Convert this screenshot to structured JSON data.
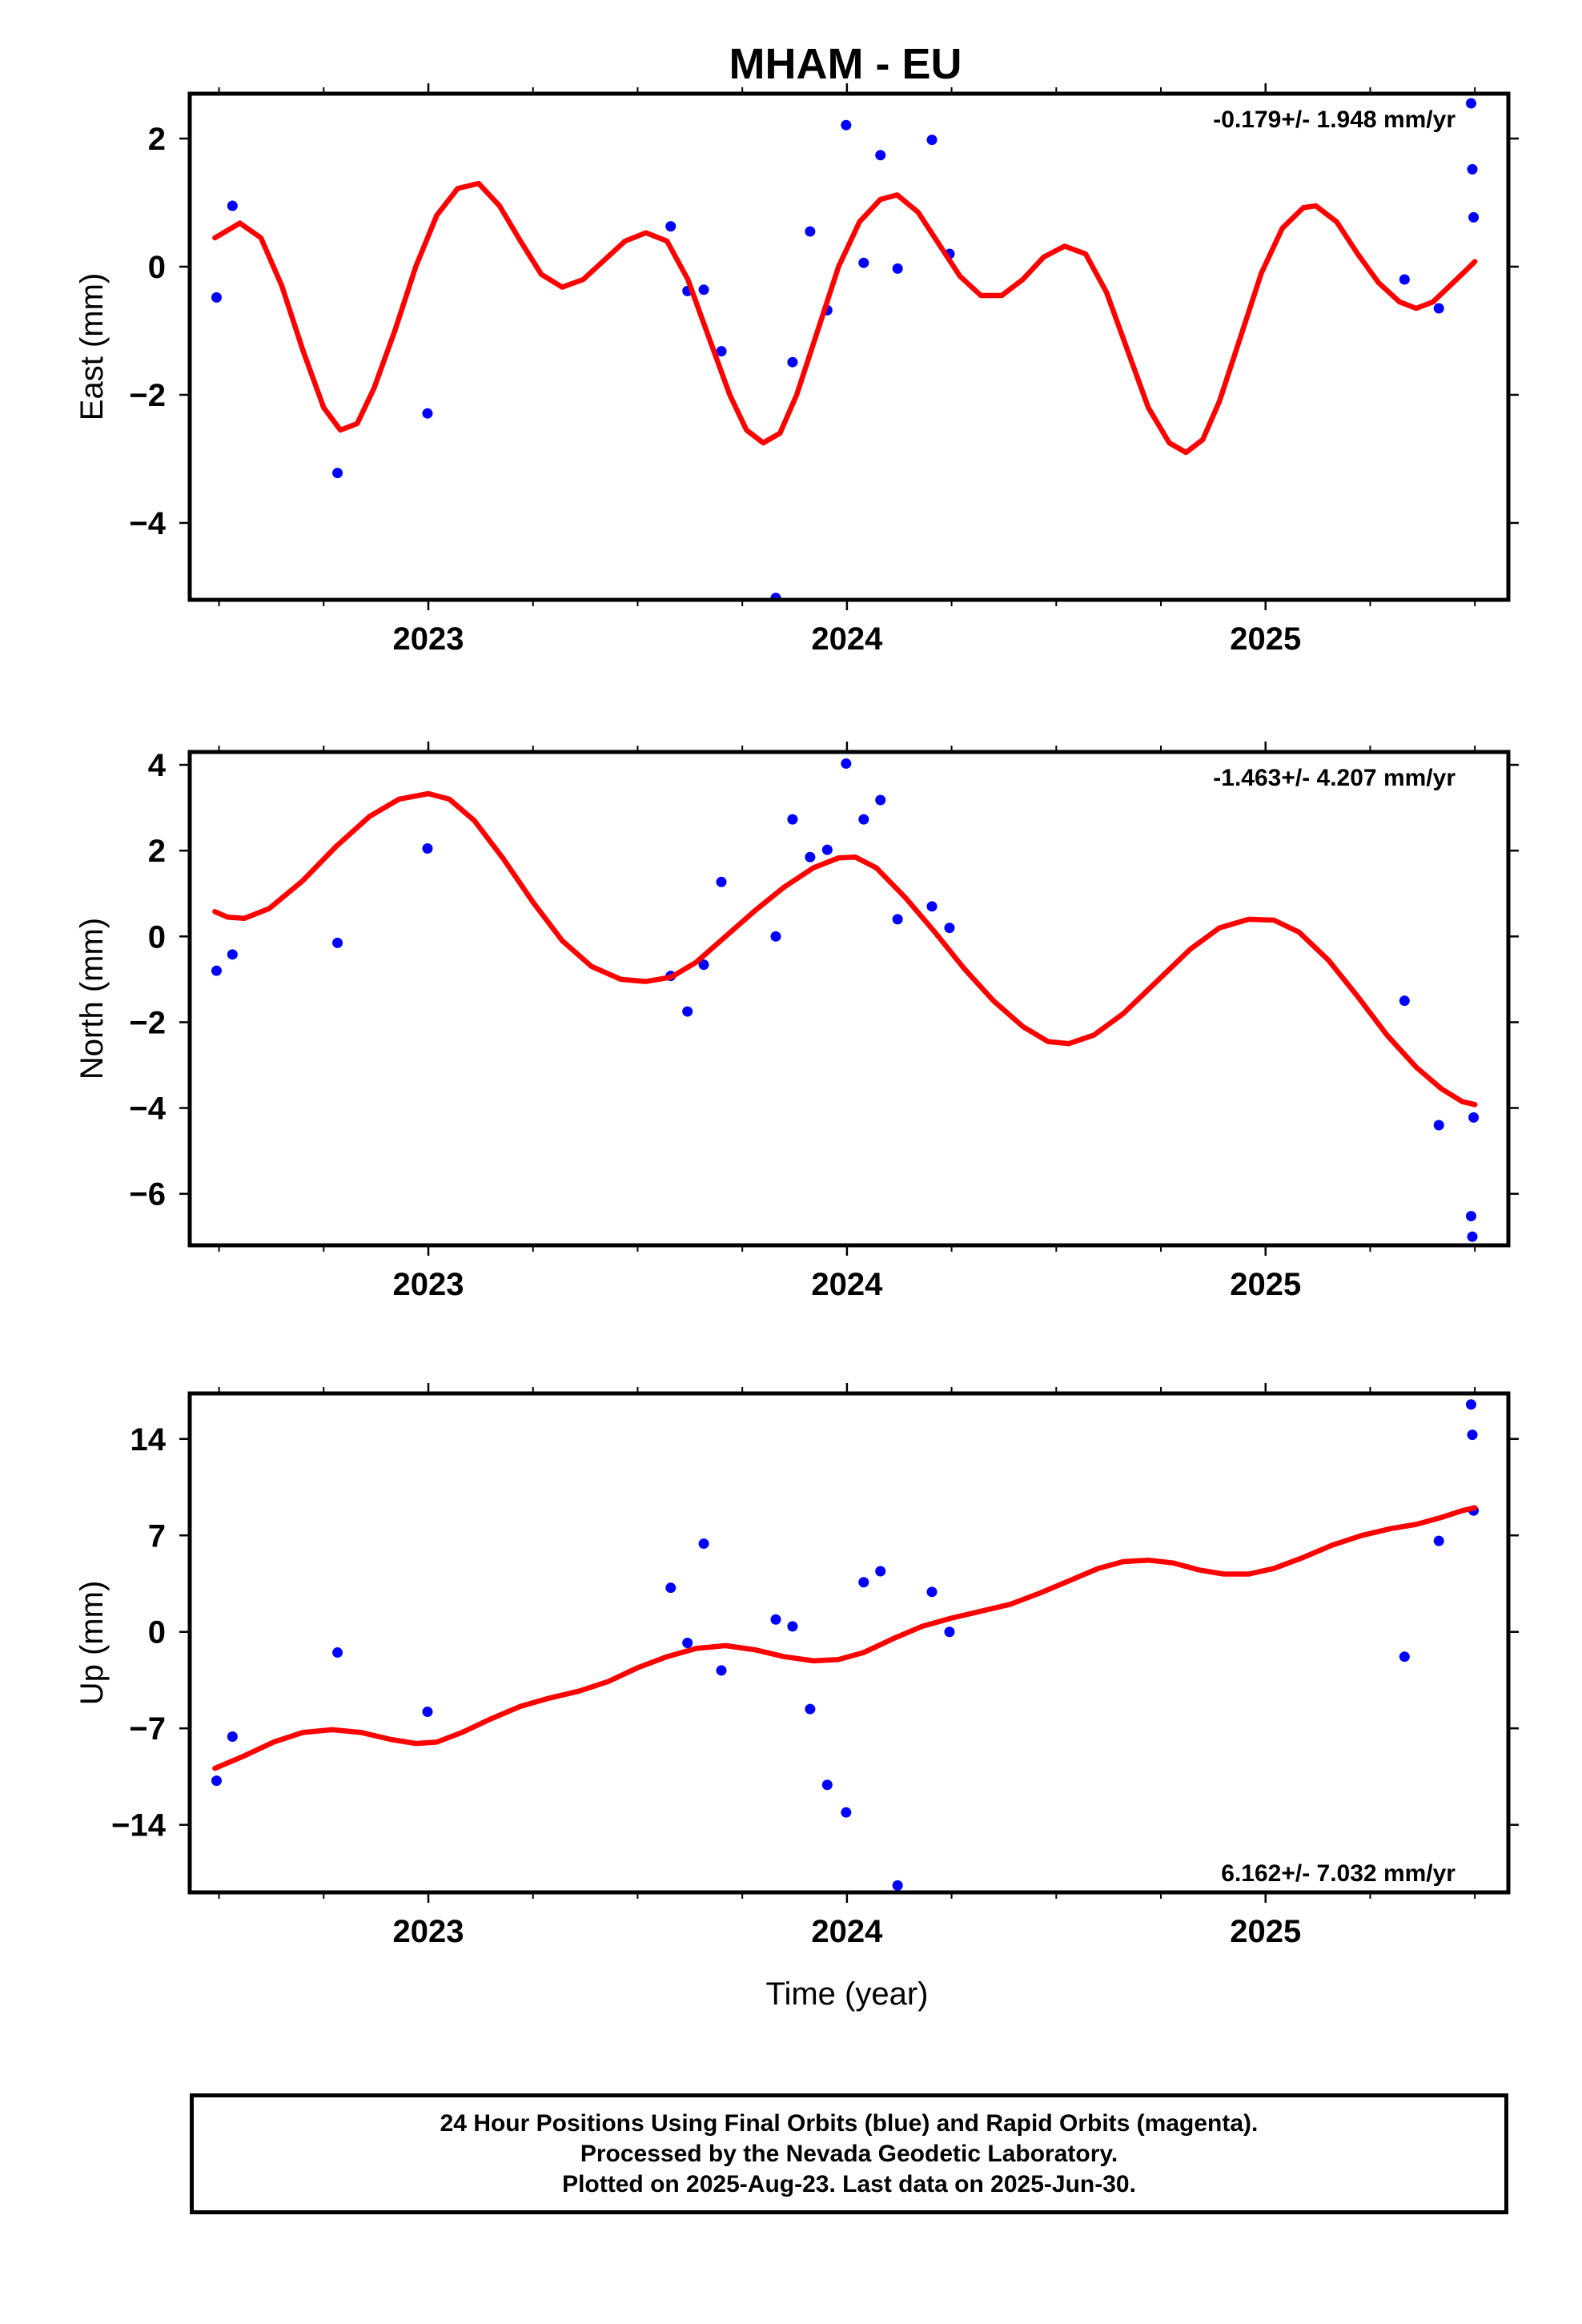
{
  "title": "MHAM - EU",
  "colors": {
    "fit": "#ff0000",
    "final_orbits": "#0000ff",
    "frame": "#000000"
  },
  "chart_data": [
    {
      "type": "scatter",
      "component": "east",
      "ylabel": "East (mm)",
      "xlabel": "",
      "rate_label": "-0.179+/- 1.948 mm/yr",
      "xlim": [
        2022.43,
        2025.58
      ],
      "ylim": [
        -5.2,
        2.7
      ],
      "yticks": [
        2,
        0,
        -2,
        -4
      ],
      "yticks_text": [
        "2",
        "0",
        "−2",
        "−4"
      ],
      "xticks": [
        2023,
        2024,
        2025
      ],
      "xticks_text": [
        "2023",
        "2024",
        "2025"
      ],
      "points": [
        [
          2022.494,
          -0.48
        ],
        [
          2022.532,
          0.95
        ],
        [
          2022.783,
          -3.22
        ],
        [
          2022.998,
          -2.29
        ],
        [
          2023.579,
          0.63
        ],
        [
          2023.619,
          -0.38
        ],
        [
          2023.658,
          -0.36
        ],
        [
          2023.7,
          -1.32
        ],
        [
          2023.83,
          -5.17
        ],
        [
          2023.87,
          -1.49
        ],
        [
          2023.912,
          0.55
        ],
        [
          2023.953,
          -0.68
        ],
        [
          2023.998,
          2.21
        ],
        [
          2024.04,
          0.06
        ],
        [
          2024.08,
          1.74
        ],
        [
          2024.121,
          -0.03
        ],
        [
          2024.203,
          1.98
        ],
        [
          2024.245,
          0.2
        ],
        [
          2025.332,
          -0.2
        ],
        [
          2025.414,
          -0.65
        ],
        [
          2025.491,
          2.55
        ],
        [
          2025.494,
          1.52
        ],
        [
          2025.497,
          0.77
        ]
      ],
      "fit": [
        [
          2022.49,
          0.45
        ],
        [
          2022.55,
          0.68
        ],
        [
          2022.6,
          0.45
        ],
        [
          2022.65,
          -0.3
        ],
        [
          2022.7,
          -1.3
        ],
        [
          2022.75,
          -2.2
        ],
        [
          2022.79,
          -2.55
        ],
        [
          2022.83,
          -2.45
        ],
        [
          2022.87,
          -1.9
        ],
        [
          2022.92,
          -1.0
        ],
        [
          2022.97,
          0.0
        ],
        [
          2023.02,
          0.8
        ],
        [
          2023.07,
          1.22
        ],
        [
          2023.12,
          1.3
        ],
        [
          2023.17,
          0.95
        ],
        [
          2023.22,
          0.4
        ],
        [
          2023.27,
          -0.12
        ],
        [
          2023.32,
          -0.32
        ],
        [
          2023.37,
          -0.2
        ],
        [
          2023.42,
          0.1
        ],
        [
          2023.47,
          0.4
        ],
        [
          2023.52,
          0.53
        ],
        [
          2023.57,
          0.4
        ],
        [
          2023.62,
          -0.2
        ],
        [
          2023.67,
          -1.1
        ],
        [
          2023.72,
          -2.0
        ],
        [
          2023.76,
          -2.55
        ],
        [
          2023.8,
          -2.75
        ],
        [
          2023.84,
          -2.6
        ],
        [
          2023.88,
          -2.0
        ],
        [
          2023.93,
          -1.0
        ],
        [
          2023.98,
          0.0
        ],
        [
          2024.03,
          0.7
        ],
        [
          2024.08,
          1.05
        ],
        [
          2024.12,
          1.12
        ],
        [
          2024.17,
          0.85
        ],
        [
          2024.22,
          0.35
        ],
        [
          2024.27,
          -0.15
        ],
        [
          2024.32,
          -0.45
        ],
        [
          2024.37,
          -0.45
        ],
        [
          2024.42,
          -0.2
        ],
        [
          2024.47,
          0.15
        ],
        [
          2024.52,
          0.32
        ],
        [
          2024.57,
          0.2
        ],
        [
          2024.62,
          -0.4
        ],
        [
          2024.67,
          -1.3
        ],
        [
          2024.72,
          -2.2
        ],
        [
          2024.77,
          -2.75
        ],
        [
          2024.81,
          -2.9
        ],
        [
          2024.85,
          -2.7
        ],
        [
          2024.89,
          -2.1
        ],
        [
          2024.94,
          -1.1
        ],
        [
          2024.99,
          -0.1
        ],
        [
          2025.04,
          0.6
        ],
        [
          2025.09,
          0.92
        ],
        [
          2025.12,
          0.95
        ],
        [
          2025.17,
          0.7
        ],
        [
          2025.22,
          0.2
        ],
        [
          2025.27,
          -0.25
        ],
        [
          2025.32,
          -0.55
        ],
        [
          2025.36,
          -0.65
        ],
        [
          2025.4,
          -0.55
        ],
        [
          2025.44,
          -0.3
        ],
        [
          2025.48,
          -0.05
        ],
        [
          2025.5,
          0.08
        ]
      ]
    },
    {
      "type": "scatter",
      "component": "north",
      "ylabel": "North (mm)",
      "xlabel": "",
      "rate_label": "-1.463+/- 4.207 mm/yr",
      "xlim": [
        2022.43,
        2025.58
      ],
      "ylim": [
        -7.2,
        4.3
      ],
      "yticks": [
        4,
        2,
        0,
        -2,
        -4,
        -6
      ],
      "yticks_text": [
        "4",
        "2",
        "0",
        "−2",
        "−4",
        "−6"
      ],
      "xticks": [
        2023,
        2024,
        2025
      ],
      "xticks_text": [
        "2023",
        "2024",
        "2025"
      ],
      "points": [
        [
          2022.494,
          -0.8
        ],
        [
          2022.532,
          -0.42
        ],
        [
          2022.783,
          -0.15
        ],
        [
          2022.998,
          2.05
        ],
        [
          2023.579,
          -0.92
        ],
        [
          2023.619,
          -1.75
        ],
        [
          2023.658,
          -0.66
        ],
        [
          2023.7,
          1.27
        ],
        [
          2023.83,
          0.0
        ],
        [
          2023.87,
          2.73
        ],
        [
          2023.912,
          1.85
        ],
        [
          2023.953,
          2.02
        ],
        [
          2023.998,
          4.03
        ],
        [
          2024.04,
          2.73
        ],
        [
          2024.08,
          3.18
        ],
        [
          2024.121,
          0.4
        ],
        [
          2024.203,
          0.7
        ],
        [
          2024.245,
          0.2
        ],
        [
          2025.332,
          -1.5
        ],
        [
          2025.414,
          -4.4
        ],
        [
          2025.491,
          -6.52
        ],
        [
          2025.494,
          -7.0
        ],
        [
          2025.497,
          -4.22
        ]
      ],
      "fit": [
        [
          2022.49,
          0.58
        ],
        [
          2022.52,
          0.45
        ],
        [
          2022.56,
          0.42
        ],
        [
          2022.62,
          0.65
        ],
        [
          2022.7,
          1.3
        ],
        [
          2022.78,
          2.1
        ],
        [
          2022.86,
          2.8
        ],
        [
          2022.93,
          3.2
        ],
        [
          2023.0,
          3.33
        ],
        [
          2023.05,
          3.2
        ],
        [
          2023.11,
          2.7
        ],
        [
          2023.18,
          1.8
        ],
        [
          2023.25,
          0.8
        ],
        [
          2023.32,
          -0.1
        ],
        [
          2023.39,
          -0.7
        ],
        [
          2023.46,
          -1.0
        ],
        [
          2023.52,
          -1.05
        ],
        [
          2023.58,
          -0.95
        ],
        [
          2023.64,
          -0.6
        ],
        [
          2023.71,
          0.0
        ],
        [
          2023.78,
          0.6
        ],
        [
          2023.85,
          1.15
        ],
        [
          2023.92,
          1.6
        ],
        [
          2023.98,
          1.83
        ],
        [
          2024.02,
          1.85
        ],
        [
          2024.07,
          1.6
        ],
        [
          2024.14,
          0.9
        ],
        [
          2024.21,
          0.1
        ],
        [
          2024.28,
          -0.75
        ],
        [
          2024.35,
          -1.5
        ],
        [
          2024.42,
          -2.1
        ],
        [
          2024.48,
          -2.45
        ],
        [
          2024.53,
          -2.5
        ],
        [
          2024.59,
          -2.3
        ],
        [
          2024.66,
          -1.8
        ],
        [
          2024.74,
          -1.05
        ],
        [
          2024.82,
          -0.3
        ],
        [
          2024.89,
          0.2
        ],
        [
          2024.96,
          0.4
        ],
        [
          2025.02,
          0.38
        ],
        [
          2025.08,
          0.1
        ],
        [
          2025.15,
          -0.55
        ],
        [
          2025.22,
          -1.4
        ],
        [
          2025.29,
          -2.3
        ],
        [
          2025.36,
          -3.05
        ],
        [
          2025.42,
          -3.55
        ],
        [
          2025.47,
          -3.85
        ],
        [
          2025.5,
          -3.92
        ]
      ]
    },
    {
      "type": "scatter",
      "component": "up",
      "ylabel": "Up (mm)",
      "xlabel": "Time (year)",
      "rate_label": "6.162+/- 7.032 mm/yr",
      "xlim": [
        2022.43,
        2025.58
      ],
      "ylim": [
        -18.9,
        17.3
      ],
      "yticks": [
        14,
        7,
        0,
        -7,
        -14
      ],
      "yticks_text": [
        "14",
        "7",
        "0",
        "−7",
        "−14"
      ],
      "xticks": [
        2023,
        2024,
        2025
      ],
      "xticks_text": [
        "2023",
        "2024",
        "2025"
      ],
      "points": [
        [
          2022.494,
          -10.8
        ],
        [
          2022.532,
          -7.6
        ],
        [
          2022.783,
          -1.5
        ],
        [
          2022.998,
          -5.8
        ],
        [
          2023.579,
          3.2
        ],
        [
          2023.619,
          -0.8
        ],
        [
          2023.658,
          6.4
        ],
        [
          2023.7,
          -2.8
        ],
        [
          2023.83,
          0.9
        ],
        [
          2023.87,
          0.4
        ],
        [
          2023.912,
          -5.6
        ],
        [
          2023.953,
          -11.1
        ],
        [
          2023.998,
          -13.1
        ],
        [
          2024.04,
          3.6
        ],
        [
          2024.08,
          4.4
        ],
        [
          2024.121,
          -18.4
        ],
        [
          2024.203,
          2.9
        ],
        [
          2024.245,
          0.0
        ],
        [
          2025.332,
          -1.8
        ],
        [
          2025.414,
          6.6
        ],
        [
          2025.491,
          16.5
        ],
        [
          2025.494,
          14.3
        ],
        [
          2025.497,
          8.8
        ]
      ],
      "fit": [
        [
          2022.49,
          -9.9
        ],
        [
          2022.56,
          -9.0
        ],
        [
          2022.63,
          -8.0
        ],
        [
          2022.7,
          -7.3
        ],
        [
          2022.77,
          -7.1
        ],
        [
          2022.84,
          -7.3
        ],
        [
          2022.91,
          -7.8
        ],
        [
          2022.97,
          -8.1
        ],
        [
          2023.02,
          -8.0
        ],
        [
          2023.08,
          -7.3
        ],
        [
          2023.15,
          -6.3
        ],
        [
          2023.22,
          -5.4
        ],
        [
          2023.29,
          -4.8
        ],
        [
          2023.36,
          -4.3
        ],
        [
          2023.43,
          -3.6
        ],
        [
          2023.5,
          -2.6
        ],
        [
          2023.57,
          -1.8
        ],
        [
          2023.64,
          -1.2
        ],
        [
          2023.71,
          -1.0
        ],
        [
          2023.78,
          -1.3
        ],
        [
          2023.85,
          -1.8
        ],
        [
          2023.92,
          -2.1
        ],
        [
          2023.98,
          -2.0
        ],
        [
          2024.04,
          -1.5
        ],
        [
          2024.11,
          -0.5
        ],
        [
          2024.18,
          0.4
        ],
        [
          2024.25,
          1.0
        ],
        [
          2024.32,
          1.5
        ],
        [
          2024.39,
          2.0
        ],
        [
          2024.46,
          2.8
        ],
        [
          2024.53,
          3.7
        ],
        [
          2024.6,
          4.6
        ],
        [
          2024.66,
          5.1
        ],
        [
          2024.72,
          5.2
        ],
        [
          2024.78,
          5.0
        ],
        [
          2024.84,
          4.5
        ],
        [
          2024.9,
          4.2
        ],
        [
          2024.96,
          4.2
        ],
        [
          2025.02,
          4.6
        ],
        [
          2025.09,
          5.4
        ],
        [
          2025.16,
          6.3
        ],
        [
          2025.23,
          7.0
        ],
        [
          2025.3,
          7.5
        ],
        [
          2025.36,
          7.8
        ],
        [
          2025.42,
          8.3
        ],
        [
          2025.47,
          8.8
        ],
        [
          2025.5,
          9.0
        ]
      ]
    }
  ],
  "caption": {
    "line1": "24 Hour Positions Using Final Orbits (blue) and Rapid Orbits (magenta).",
    "line2": "Processed by the Nevada Geodetic Laboratory.",
    "line3": "Plotted on 2025-Aug-23. Last data on 2025-Jun-30."
  }
}
